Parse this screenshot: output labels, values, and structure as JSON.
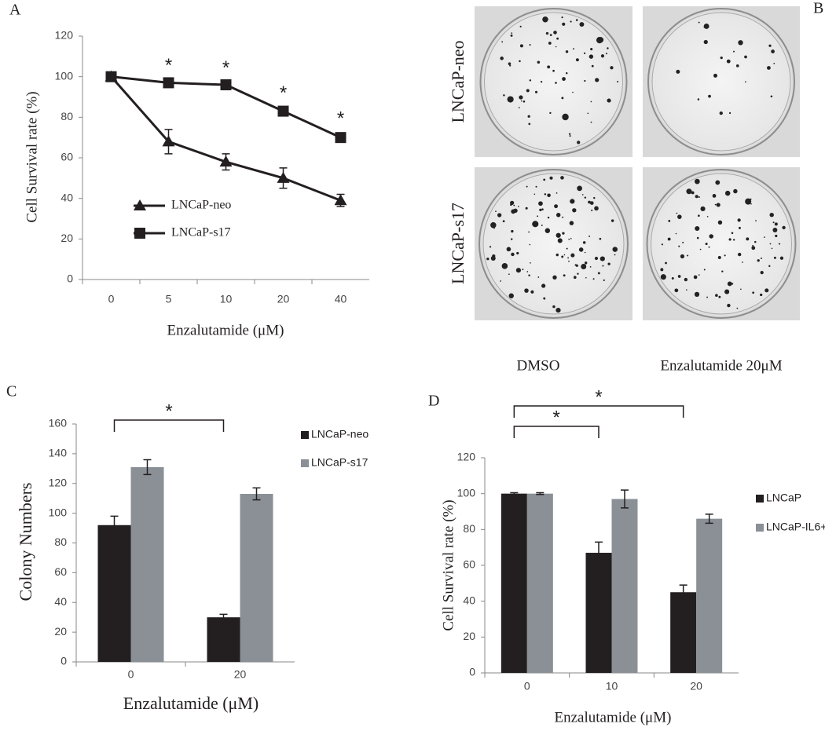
{
  "chart_data": [
    {
      "type": "line",
      "panel": "A",
      "x_label": "Enzalutamide (μM)",
      "y_label": "Cell Survival rate (%)",
      "categories": [
        "0",
        "5",
        "10",
        "20",
        "40"
      ],
      "series": [
        {
          "name": "LNCaP-neo",
          "color": "#231f20",
          "marker": "triangle",
          "values": [
            100,
            68,
            58,
            50,
            39
          ],
          "errors": [
            0,
            6,
            4,
            5,
            3
          ]
        },
        {
          "name": "LNCaP-s17",
          "color": "#231f20",
          "marker": "square",
          "values": [
            100,
            97,
            96,
            83,
            70
          ],
          "errors": [
            1,
            1,
            1,
            1.5,
            2
          ]
        }
      ],
      "annotations": [
        null,
        "*",
        "*",
        "*",
        "*"
      ],
      "ylim": [
        0,
        120
      ],
      "yticks": [
        0,
        20,
        40,
        60,
        80,
        100,
        120
      ]
    },
    {
      "type": "bar",
      "panel": "C",
      "x_label": "Enzalutamide (μM)",
      "y_label": "Colony Numbers",
      "categories": [
        "0",
        "20"
      ],
      "series": [
        {
          "name": "LNCaP-neo",
          "color": "#231f20",
          "values": [
            92,
            30
          ],
          "errors": [
            6,
            2
          ]
        },
        {
          "name": "LNCaP-s17",
          "color": "#8a9096",
          "values": [
            131,
            113
          ],
          "errors": [
            5,
            4
          ]
        }
      ],
      "brackets": [
        {
          "from": "0",
          "to": "20",
          "text": "*"
        }
      ],
      "ylim": [
        0,
        160
      ],
      "yticks": [
        0,
        20,
        40,
        60,
        80,
        100,
        120,
        140,
        160
      ]
    },
    {
      "type": "bar",
      "panel": "D",
      "x_label": "Enzalutamide (μM)",
      "y_label": "Cell Survival rate (%)",
      "categories": [
        "0",
        "10",
        "20"
      ],
      "series": [
        {
          "name": "LNCaP",
          "color": "#231f20",
          "values": [
            100,
            67,
            45
          ],
          "errors": [
            0.5,
            6,
            4
          ]
        },
        {
          "name": "LNCaP-IL6+",
          "color": "#8a9096",
          "values": [
            100,
            97,
            86
          ],
          "errors": [
            0.5,
            5,
            2.5
          ]
        }
      ],
      "brackets": [
        {
          "from": "0",
          "to": "10",
          "text": "*"
        },
        {
          "from": "0",
          "to": "20",
          "text": "*"
        }
      ],
      "ylim": [
        0,
        120
      ],
      "yticks": [
        0,
        20,
        40,
        60,
        80,
        100,
        120
      ]
    }
  ],
  "panel_b": {
    "panel": "B",
    "rows": [
      "LNCaP-neo",
      "LNCaP-s17"
    ],
    "columns": [
      "DMSO",
      "Enzalutamide 20μM"
    ]
  }
}
